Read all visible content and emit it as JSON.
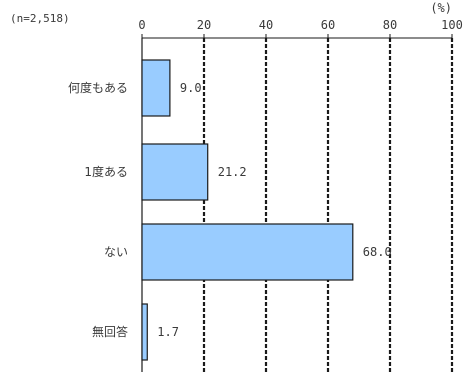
{
  "chart_data": {
    "type": "bar",
    "orientation": "horizontal",
    "sample_label": "(n=2,518)",
    "unit_label": "(%)",
    "categories": [
      "何度もある",
      "1度ある",
      "ない",
      "無回答"
    ],
    "values": [
      9.0,
      21.2,
      68.0,
      1.7
    ],
    "value_labels": [
      "9.0",
      "21.2",
      "68.0",
      "1.7"
    ],
    "xlim": [
      0,
      100
    ],
    "ticks": [
      0,
      20,
      40,
      60,
      80,
      100
    ],
    "tick_labels": [
      "0",
      "20",
      "40",
      "60",
      "80",
      "100"
    ],
    "grid": true,
    "legend": "none",
    "bar_color": "#99ccff",
    "bar_edge_color": "#1a1a1a",
    "grid_color": "#1a1a1a",
    "text_color": "#3a3a3a"
  }
}
